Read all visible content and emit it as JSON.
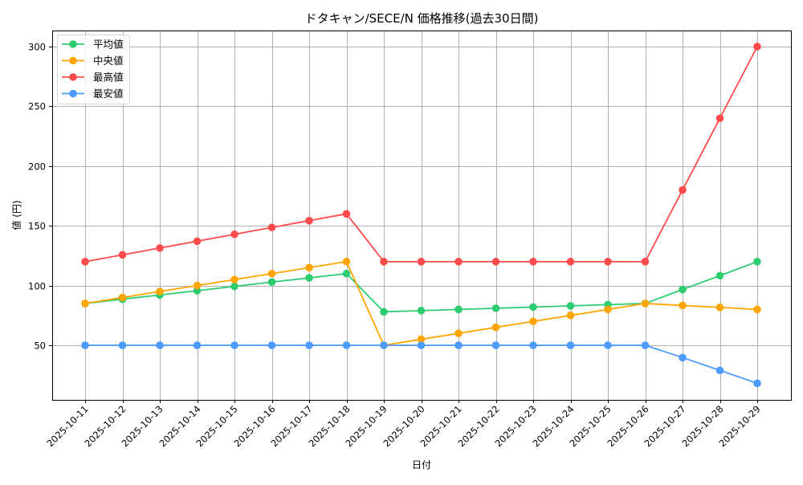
{
  "chart_data": {
    "type": "line",
    "title": "ドタキャン/SECE/N 価格推移(過去30日間)",
    "xlabel": "日付",
    "ylabel": "値 (円)",
    "categories": [
      "2025-10-11",
      "2025-10-12",
      "2025-10-13",
      "2025-10-14",
      "2025-10-15",
      "2025-10-16",
      "2025-10-17",
      "2025-10-18",
      "2025-10-19",
      "2025-10-20",
      "2025-10-21",
      "2025-10-22",
      "2025-10-23",
      "2025-10-24",
      "2025-10-25",
      "2025-10-26",
      "2025-10-27",
      "2025-10-28",
      "2025-10-29"
    ],
    "series": [
      {
        "name": "平均値",
        "color": "#2ecc71",
        "values": [
          85,
          88.6,
          92.1,
          95.7,
          99.3,
          102.9,
          106.4,
          110,
          78,
          79,
          80,
          81,
          82,
          83,
          84,
          85,
          96.7,
          108.3,
          120
        ]
      },
      {
        "name": "中央値",
        "color": "#ffa500",
        "values": [
          85,
          90,
          95,
          100,
          105,
          110,
          115,
          120,
          50,
          55,
          60,
          65,
          70,
          75,
          80,
          85,
          83.3,
          81.7,
          80
        ]
      },
      {
        "name": "最高値",
        "color": "#ff4b4b",
        "values": [
          120,
          125.7,
          131.4,
          137.1,
          142.9,
          148.6,
          154.3,
          160,
          120,
          120,
          120,
          120,
          120,
          120,
          120,
          120,
          180,
          240,
          300
        ]
      },
      {
        "name": "最安値",
        "color": "#4c9bff",
        "values": [
          50,
          50,
          50,
          50,
          50,
          50,
          50,
          50,
          50,
          50,
          50,
          50,
          50,
          50,
          50,
          50,
          39.7,
          29,
          18.2
        ]
      }
    ],
    "yticks": [
      50,
      100,
      150,
      200,
      250,
      300
    ],
    "ylim": [
      4,
      313
    ],
    "grid": true,
    "legend_position": "upper left"
  }
}
